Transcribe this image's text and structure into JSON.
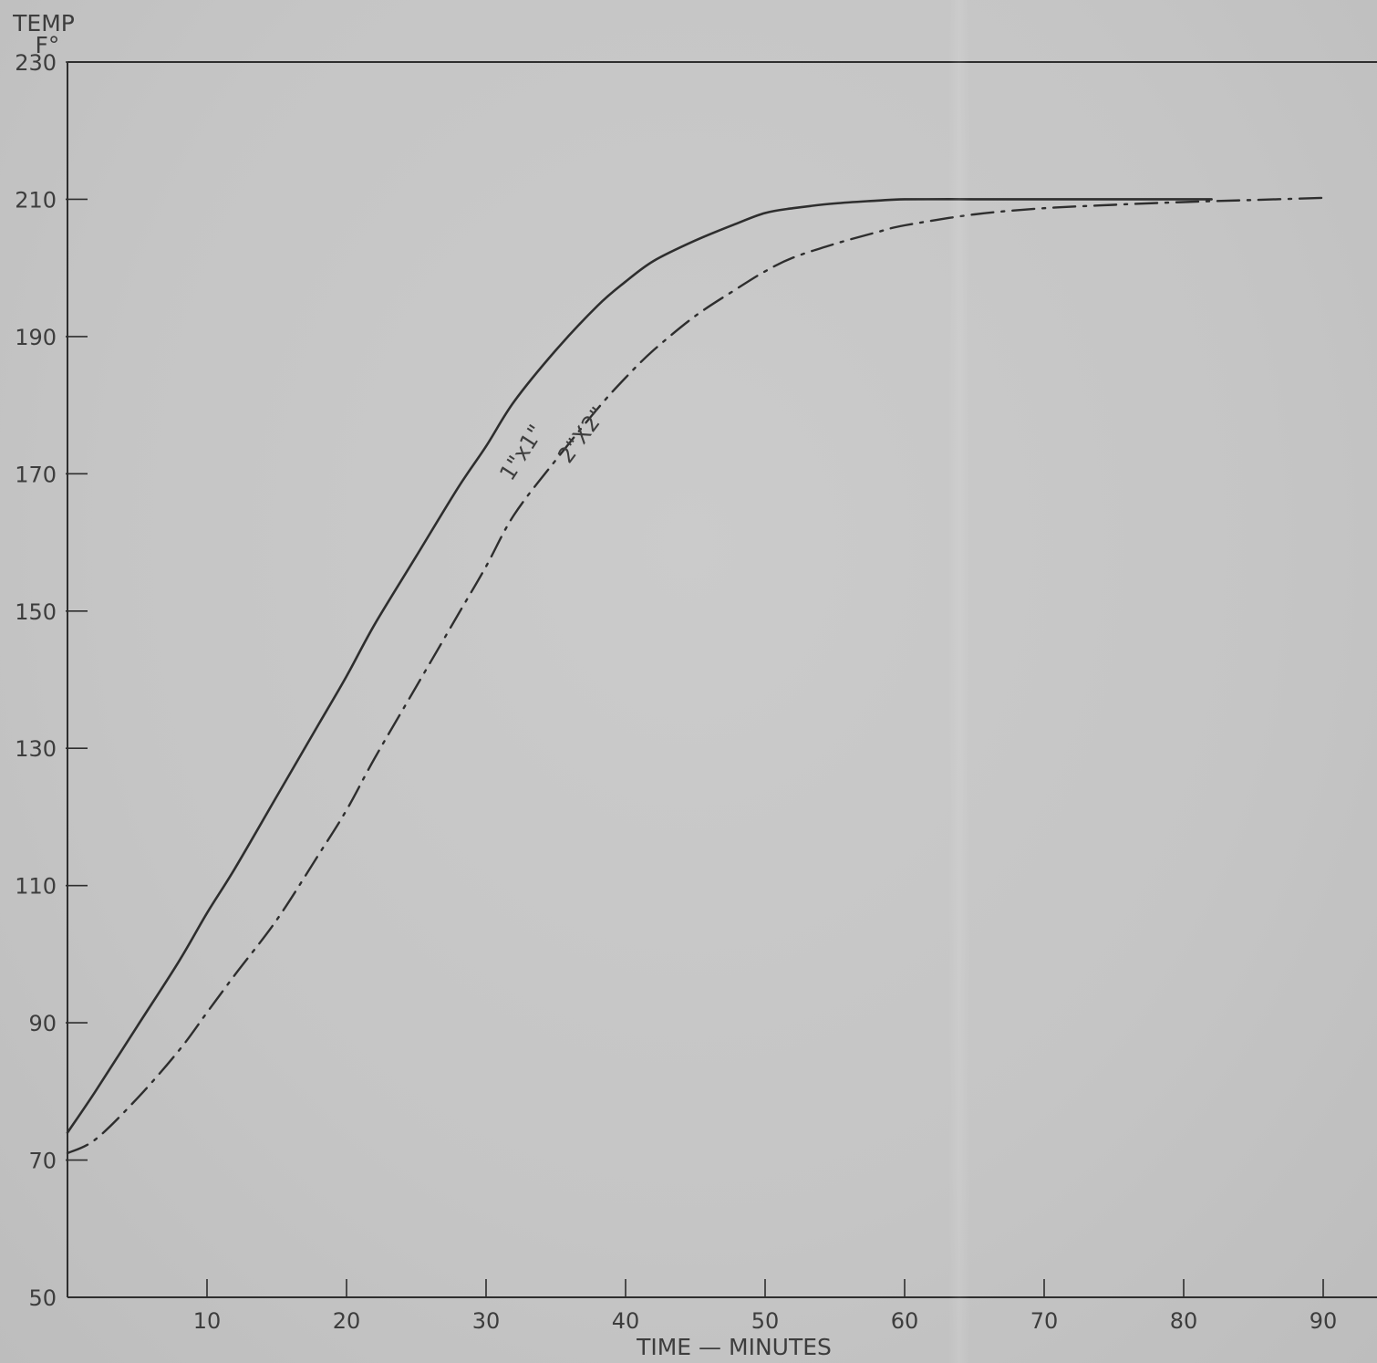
{
  "chart_data": {
    "type": "line",
    "ylabel_line1": "TEMP",
    "ylabel_line2": "F°",
    "xlabel": "TIME — MINUTES",
    "xlim": [
      0,
      96
    ],
    "ylim": [
      50,
      230
    ],
    "x_ticks": [
      10,
      20,
      30,
      40,
      50,
      60,
      70,
      80,
      90
    ],
    "x_tick_labels": [
      "10",
      "20",
      "30",
      "40",
      "50",
      "60",
      "70",
      "80",
      "90"
    ],
    "y_ticks": [
      50,
      70,
      90,
      110,
      130,
      150,
      170,
      190,
      210,
      230
    ],
    "y_tick_labels": [
      "50",
      "70",
      "90",
      "110",
      "130",
      "150",
      "170",
      "190",
      "210",
      "230"
    ],
    "grid": false,
    "series": [
      {
        "name": "1\"x1\"",
        "style": "solid",
        "x": [
          0,
          2,
          5,
          8,
          10,
          12,
          15,
          18,
          20,
          22,
          25,
          28,
          30,
          32,
          35,
          38,
          40,
          42,
          45,
          48,
          50,
          52,
          55,
          58,
          60,
          65,
          70,
          75,
          80,
          82
        ],
        "y": [
          74,
          80,
          89.5,
          99,
          106,
          112.5,
          123,
          133.5,
          140.5,
          148,
          158,
          168,
          174,
          180.5,
          188,
          194.5,
          198,
          201,
          204,
          206.5,
          208,
          208.7,
          209.4,
          209.8,
          210,
          210,
          210,
          210,
          210,
          210
        ]
      },
      {
        "name": "2\"X2\"",
        "style": "dashdot",
        "x": [
          0,
          2,
          5,
          8,
          10,
          12,
          15,
          18,
          20,
          22,
          25,
          28,
          30,
          32,
          35,
          38,
          40,
          42,
          45,
          48,
          50,
          52,
          55,
          58,
          60,
          65,
          70,
          75,
          80,
          85,
          90
        ],
        "y": [
          71,
          73,
          79,
          86,
          91.5,
          97,
          105,
          114.5,
          121,
          128.5,
          139,
          149.5,
          156.5,
          164,
          172,
          179.5,
          184,
          188,
          193,
          197,
          199.5,
          201.5,
          203.5,
          205.2,
          206.2,
          207.8,
          208.7,
          209.2,
          209.6,
          209.9,
          210.2
        ]
      }
    ],
    "colors": {
      "ink": "#2e2e2e",
      "paper": "#c6c6c6"
    }
  }
}
